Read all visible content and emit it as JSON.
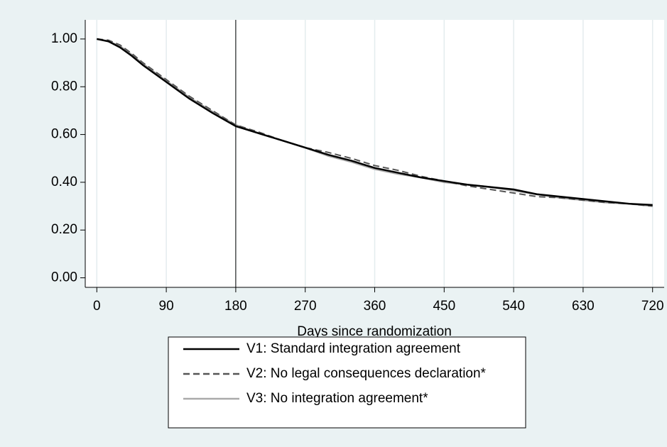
{
  "chart_data": {
    "type": "line",
    "xlabel": "Days since randomization",
    "x": [
      0,
      15,
      30,
      45,
      60,
      90,
      120,
      150,
      180,
      210,
      240,
      270,
      300,
      330,
      360,
      390,
      420,
      450,
      480,
      510,
      540,
      570,
      600,
      630,
      660,
      690,
      720
    ],
    "series": [
      {
        "name": "V1: Standard integration agreement",
        "color": "#000000",
        "linestyle": "solid",
        "values": [
          1.0,
          0.99,
          0.965,
          0.93,
          0.89,
          0.82,
          0.75,
          0.69,
          0.635,
          0.605,
          0.575,
          0.545,
          0.515,
          0.49,
          0.46,
          0.44,
          0.42,
          0.405,
          0.39,
          0.38,
          0.37,
          0.35,
          0.34,
          0.33,
          0.32,
          0.31,
          0.305
        ]
      },
      {
        "name": "V2: No legal consequences declaration*",
        "color": "#555555",
        "linestyle": "dashed",
        "values": [
          1.0,
          0.995,
          0.975,
          0.94,
          0.9,
          0.83,
          0.76,
          0.7,
          0.64,
          0.61,
          0.575,
          0.545,
          0.525,
          0.5,
          0.47,
          0.45,
          0.425,
          0.405,
          0.385,
          0.37,
          0.355,
          0.34,
          0.335,
          0.325,
          0.315,
          0.31,
          0.3
        ]
      },
      {
        "name": "V3: No integration agreement*",
        "color": "#aaaaaa",
        "linestyle": "solid",
        "values": [
          1.0,
          0.99,
          0.97,
          0.935,
          0.895,
          0.825,
          0.755,
          0.695,
          0.64,
          0.605,
          0.575,
          0.545,
          0.51,
          0.485,
          0.455,
          0.435,
          0.42,
          0.4,
          0.39,
          0.38,
          0.365,
          0.35,
          0.335,
          0.325,
          0.315,
          0.31,
          0.3
        ]
      }
    ],
    "xlim": [
      -15,
      735
    ],
    "xticks": [
      0,
      90,
      180,
      270,
      360,
      450,
      540,
      630,
      720
    ],
    "ylim": [
      -0.04,
      1.08
    ],
    "yticks": [
      {
        "value": 0,
        "label": "0.00"
      },
      {
        "value": 0.2,
        "label": "0.20"
      },
      {
        "value": 0.4,
        "label": "0.40"
      },
      {
        "value": 0.6,
        "label": "0.60"
      },
      {
        "value": 0.8,
        "label": "0.80"
      },
      {
        "value": 1.0,
        "label": "1.00"
      }
    ],
    "xline": 180,
    "grid": true,
    "legend": "bottom"
  }
}
